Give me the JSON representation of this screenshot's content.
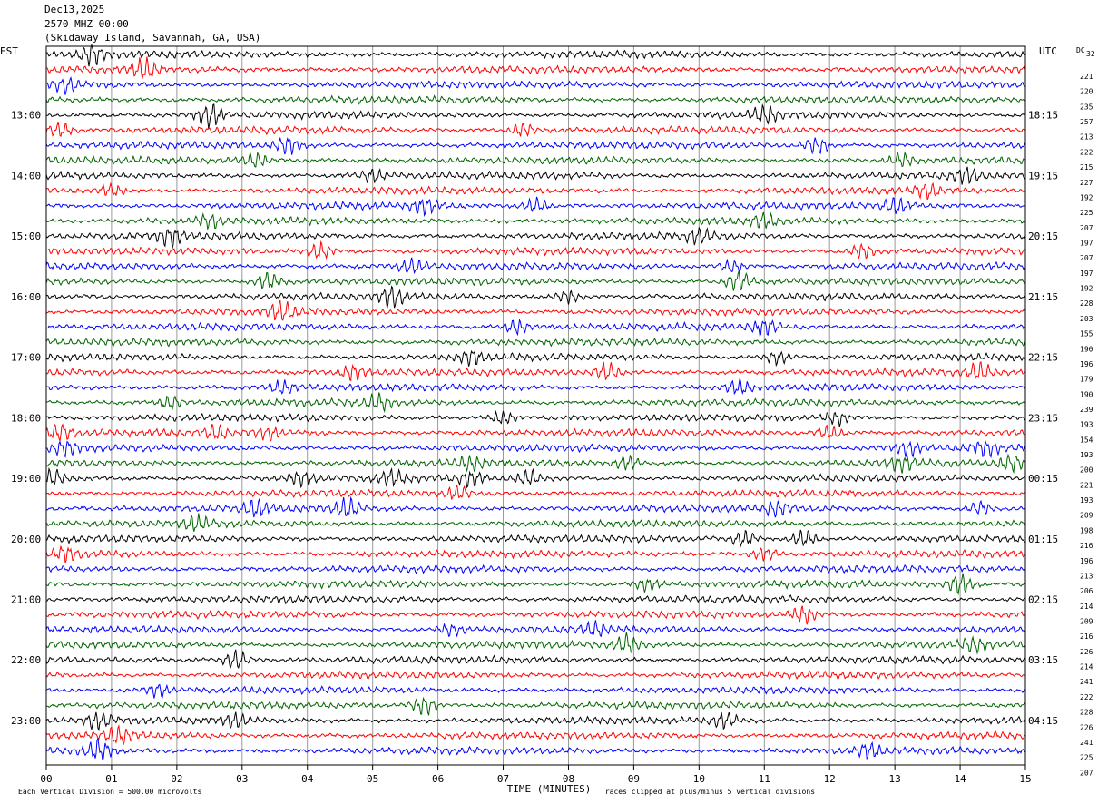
{
  "header": {
    "date": "Dec13,2025",
    "line2": "2570 MHZ 00:00",
    "station": "(Skidaway Island, Savannah, GA, USA)"
  },
  "chart_data": {
    "type": "helicorder",
    "left_axis_title": "EST",
    "right_axis_title": "UTC",
    "dc_title": "DC",
    "dc_title_value": "32",
    "left_hour_labels": [
      "13:00",
      "14:00",
      "15:00",
      "16:00",
      "17:00",
      "18:00",
      "19:00",
      "20:00",
      "21:00",
      "22:00",
      "23:00"
    ],
    "right_hour_labels": [
      "18:15",
      "19:15",
      "20:15",
      "21:15",
      "22:15",
      "23:15",
      "00:15",
      "01:15",
      "02:15",
      "03:15",
      "04:15"
    ],
    "x_ticks": [
      "00",
      "01",
      "02",
      "03",
      "04",
      "05",
      "06",
      "07",
      "08",
      "09",
      "10",
      "11",
      "12",
      "13",
      "14",
      "15"
    ],
    "xlabel": "TIME (MINUTES)",
    "xlim": [
      0,
      15
    ],
    "footer_left": "Each Vertical Division =  500.00 microvolts",
    "footer_right": "Traces clipped at plus/minus 5 vertical divisions",
    "trace_colors": [
      "#000000",
      "#ff0000",
      "#0000ff",
      "#006400"
    ],
    "dc_offsets": [
      221,
      220,
      235,
      257,
      213,
      222,
      215,
      227,
      192,
      225,
      207,
      197,
      207,
      197,
      192,
      228,
      203,
      155,
      190,
      196,
      179,
      190,
      239,
      193,
      154,
      193,
      200,
      221,
      193,
      209,
      198,
      216,
      196,
      213,
      206,
      214,
      209,
      216,
      226,
      214,
      241,
      222,
      228,
      226,
      241,
      225,
      207
    ],
    "bursts": [
      [
        0,
        [
          [
            0.7,
            1.8
          ]
        ]
      ],
      [
        1,
        [
          [
            1.5,
            2.0
          ]
        ]
      ],
      [
        2,
        [
          [
            0.3,
            1.2
          ]
        ]
      ],
      [
        4,
        [
          [
            2.5,
            2.2
          ],
          [
            11.0,
            1.6
          ]
        ]
      ],
      [
        5,
        [
          [
            0.2,
            1.4
          ],
          [
            7.3,
            1.3
          ]
        ]
      ],
      [
        6,
        [
          [
            3.7,
            1.5
          ],
          [
            11.8,
            1.6
          ]
        ]
      ],
      [
        7,
        [
          [
            3.2,
            1.4
          ],
          [
            13.1,
            1.2
          ]
        ]
      ],
      [
        8,
        [
          [
            5.0,
            1.2
          ],
          [
            14.1,
            1.4
          ]
        ]
      ],
      [
        9,
        [
          [
            1.0,
            1.1
          ],
          [
            13.5,
            1.2
          ]
        ]
      ],
      [
        10,
        [
          [
            5.8,
            1.4
          ],
          [
            7.5,
            1.3
          ],
          [
            13.0,
            1.3
          ]
        ]
      ],
      [
        11,
        [
          [
            2.5,
            1.1
          ],
          [
            11.0,
            1.1
          ]
        ]
      ],
      [
        12,
        [
          [
            1.9,
            1.6
          ],
          [
            10.0,
            1.3
          ]
        ]
      ],
      [
        13,
        [
          [
            4.2,
            1.6
          ],
          [
            12.5,
            1.4
          ]
        ]
      ],
      [
        14,
        [
          [
            5.6,
            1.3
          ],
          [
            10.5,
            1.2
          ]
        ]
      ],
      [
        15,
        [
          [
            3.4,
            1.6
          ],
          [
            10.6,
            1.8
          ]
        ]
      ],
      [
        16,
        [
          [
            5.3,
            1.8
          ],
          [
            8.0,
            1.2
          ]
        ]
      ],
      [
        17,
        [
          [
            3.6,
            1.7
          ]
        ]
      ],
      [
        18,
        [
          [
            7.2,
            1.3
          ],
          [
            11.0,
            1.4
          ]
        ]
      ],
      [
        20,
        [
          [
            6.5,
            1.2
          ],
          [
            11.2,
            1.2
          ]
        ]
      ],
      [
        21,
        [
          [
            4.7,
            1.4
          ],
          [
            8.6,
            1.7
          ],
          [
            14.3,
            1.5
          ]
        ]
      ],
      [
        22,
        [
          [
            3.6,
            1.2
          ],
          [
            10.6,
            1.2
          ]
        ]
      ],
      [
        23,
        [
          [
            1.9,
            1.1
          ],
          [
            5.1,
            1.4
          ]
        ]
      ],
      [
        24,
        [
          [
            7.0,
            1.2
          ],
          [
            12.1,
            1.2
          ]
        ]
      ],
      [
        25,
        [
          [
            0.2,
            1.5
          ],
          [
            2.6,
            1.2
          ],
          [
            3.4,
            1.2
          ],
          [
            12.0,
            1.4
          ]
        ]
      ],
      [
        26,
        [
          [
            0.3,
            1.2
          ],
          [
            13.2,
            1.3
          ],
          [
            14.4,
            1.3
          ]
        ]
      ],
      [
        27,
        [
          [
            6.5,
            1.2
          ],
          [
            8.9,
            1.2
          ],
          [
            13.1,
            1.3
          ],
          [
            14.8,
            1.4
          ]
        ]
      ],
      [
        28,
        [
          [
            0.1,
            1.4
          ],
          [
            3.9,
            1.4
          ],
          [
            5.3,
            1.3
          ],
          [
            6.5,
            1.3
          ],
          [
            7.4,
            1.3
          ]
        ]
      ],
      [
        29,
        [
          [
            6.3,
            1.2
          ]
        ]
      ],
      [
        30,
        [
          [
            3.2,
            1.3
          ],
          [
            4.6,
            1.8
          ],
          [
            11.2,
            1.2
          ],
          [
            14.3,
            1.2
          ]
        ]
      ],
      [
        31,
        [
          [
            2.3,
            1.3
          ]
        ]
      ],
      [
        32,
        [
          [
            10.7,
            1.4
          ],
          [
            11.6,
            1.6
          ]
        ]
      ],
      [
        33,
        [
          [
            0.3,
            1.1
          ],
          [
            11.0,
            1.2
          ]
        ]
      ],
      [
        35,
        [
          [
            9.2,
            1.2
          ],
          [
            14.0,
            1.8
          ]
        ]
      ],
      [
        37,
        [
          [
            11.6,
            1.6
          ]
        ]
      ],
      [
        38,
        [
          [
            8.4,
            1.2
          ],
          [
            6.2,
            1.0
          ]
        ]
      ],
      [
        39,
        [
          [
            8.9,
            1.7
          ],
          [
            14.2,
            1.1
          ]
        ]
      ],
      [
        40,
        [
          [
            2.9,
            1.8
          ]
        ]
      ],
      [
        42,
        [
          [
            1.7,
            1.2
          ]
        ]
      ],
      [
        43,
        [
          [
            5.8,
            1.8
          ]
        ]
      ],
      [
        44,
        [
          [
            0.8,
            1.5
          ],
          [
            2.9,
            1.2
          ],
          [
            10.4,
            1.3
          ]
        ]
      ],
      [
        45,
        [
          [
            1.1,
            1.6
          ]
        ]
      ],
      [
        46,
        [
          [
            0.8,
            1.9
          ],
          [
            12.6,
            1.3
          ]
        ]
      ]
    ]
  }
}
